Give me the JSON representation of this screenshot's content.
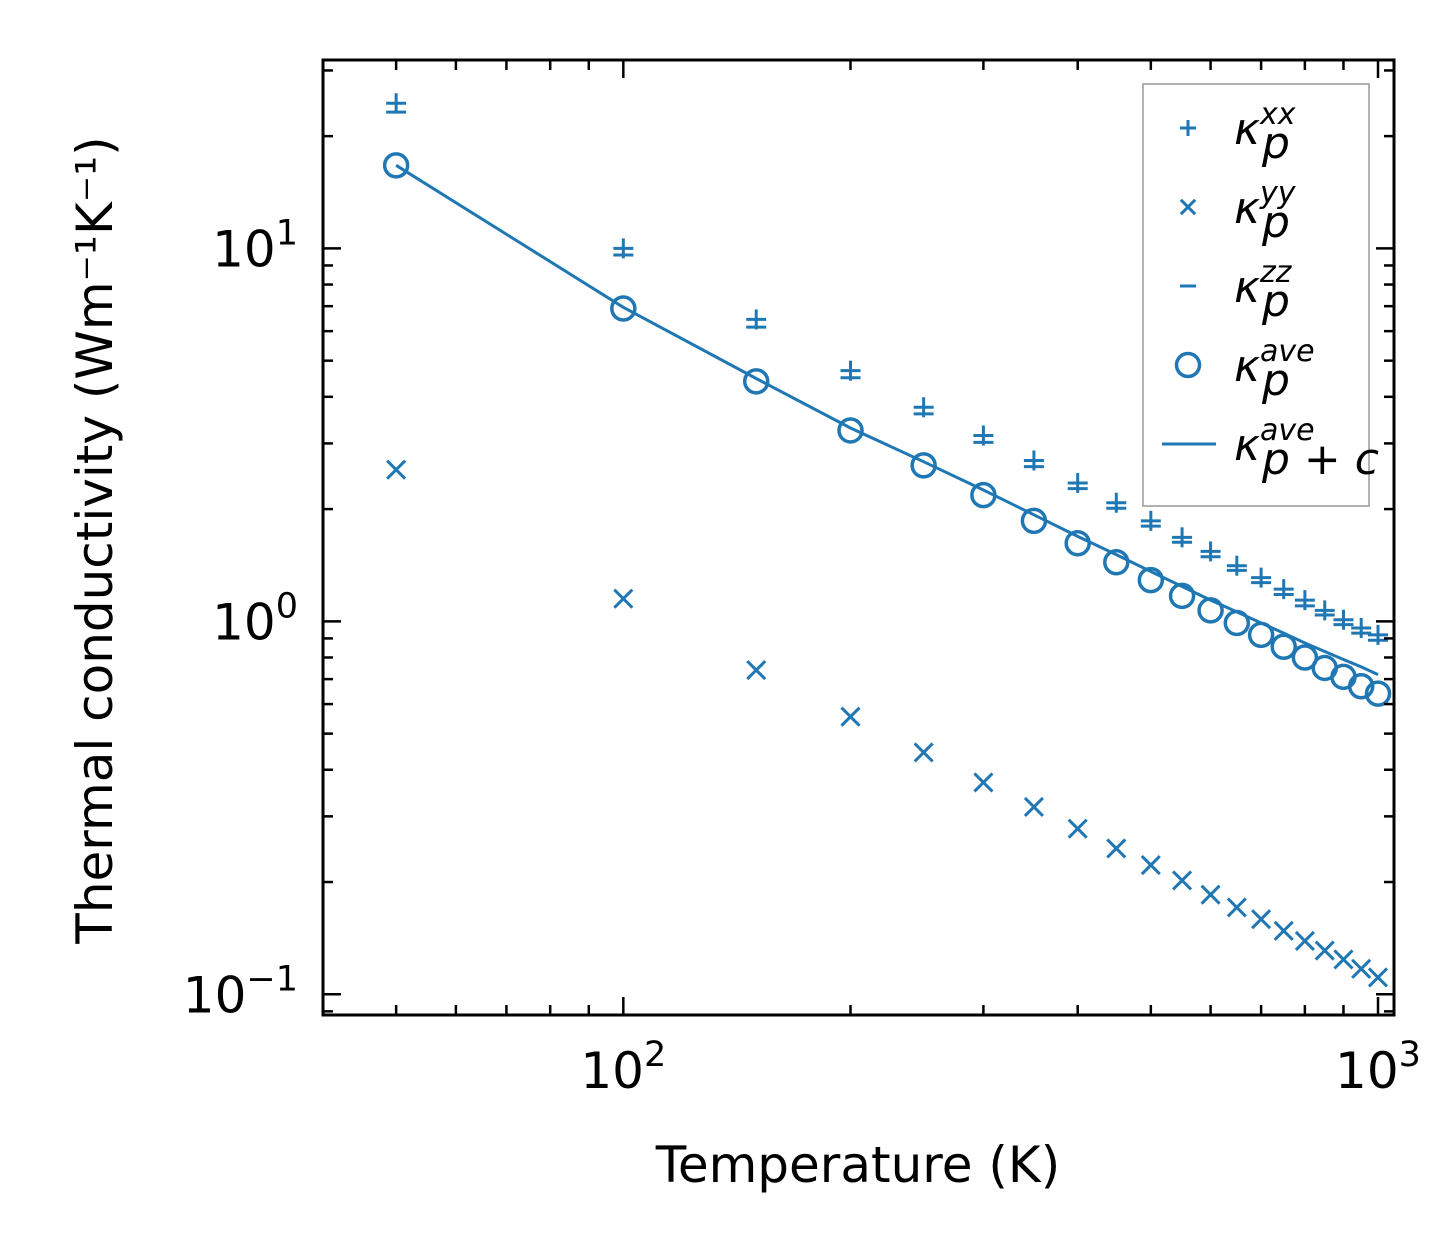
{
  "chart_data": {
    "type": "scatter",
    "xscale": "log",
    "yscale": "log",
    "xlabel": "Temperature (K)",
    "ylabel": "Thermal conductivity (Wm⁻¹K⁻¹)",
    "xlim": [
      40,
      1050
    ],
    "ylim": [
      0.088,
      32
    ],
    "xticks": [
      {
        "value": 100,
        "base": "10",
        "exp": "2"
      },
      {
        "value": 1000,
        "base": "10",
        "exp": "3"
      }
    ],
    "yticks": [
      {
        "value": 0.1,
        "base": "10",
        "exp": "−1"
      },
      {
        "value": 1,
        "base": "10",
        "exp": "0"
      },
      {
        "value": 10,
        "base": "10",
        "exp": "1"
      }
    ],
    "color": "#1f77b4",
    "x": [
      50,
      100,
      150,
      200,
      250,
      300,
      350,
      400,
      450,
      500,
      550,
      600,
      650,
      700,
      750,
      800,
      850,
      900,
      950,
      1000
    ],
    "series": [
      {
        "name": "kappa_p^xx",
        "marker": "plus",
        "values": [
          24.5,
          10.0,
          6.45,
          4.7,
          3.75,
          3.15,
          2.7,
          2.35,
          2.08,
          1.86,
          1.68,
          1.54,
          1.41,
          1.31,
          1.22,
          1.14,
          1.07,
          1.01,
          0.96,
          0.92
        ]
      },
      {
        "name": "kappa_p^yy",
        "marker": "x",
        "values": [
          2.55,
          1.15,
          0.74,
          0.555,
          0.445,
          0.37,
          0.318,
          0.278,
          0.246,
          0.222,
          0.202,
          0.185,
          0.171,
          0.159,
          0.148,
          0.139,
          0.131,
          0.124,
          0.117,
          0.111
        ]
      },
      {
        "name": "kappa_p^zz",
        "marker": "hline",
        "values": [
          23.2,
          9.6,
          6.15,
          4.5,
          3.6,
          3.02,
          2.6,
          2.27,
          2.01,
          1.8,
          1.63,
          1.49,
          1.37,
          1.27,
          1.18,
          1.1,
          1.04,
          0.98,
          0.93,
          0.89
        ]
      },
      {
        "name": "kappa_p^ave",
        "marker": "circle",
        "values": [
          16.7,
          6.9,
          4.4,
          3.25,
          2.62,
          2.18,
          1.86,
          1.62,
          1.44,
          1.29,
          1.17,
          1.07,
          0.99,
          0.92,
          0.855,
          0.8,
          0.75,
          0.71,
          0.67,
          0.64
        ]
      },
      {
        "name": "kappa_p+c^ave",
        "marker": "line",
        "values": [
          16.7,
          6.95,
          4.48,
          3.3,
          2.68,
          2.25,
          1.93,
          1.69,
          1.51,
          1.36,
          1.24,
          1.14,
          1.06,
          0.99,
          0.93,
          0.875,
          0.83,
          0.79,
          0.755,
          0.72
        ]
      }
    ],
    "legend": {
      "placement": "top-right",
      "entries": [
        {
          "symbol": "κ",
          "sub": "p",
          "sup": "xx"
        },
        {
          "symbol": "κ",
          "sub": "p",
          "sup": "yy"
        },
        {
          "symbol": "κ",
          "sub": "p",
          "sup": "zz"
        },
        {
          "symbol": "κ",
          "sub": "p",
          "sup": "ave"
        },
        {
          "symbol": "κ",
          "sub": "p + c",
          "sup": "ave"
        }
      ]
    }
  }
}
